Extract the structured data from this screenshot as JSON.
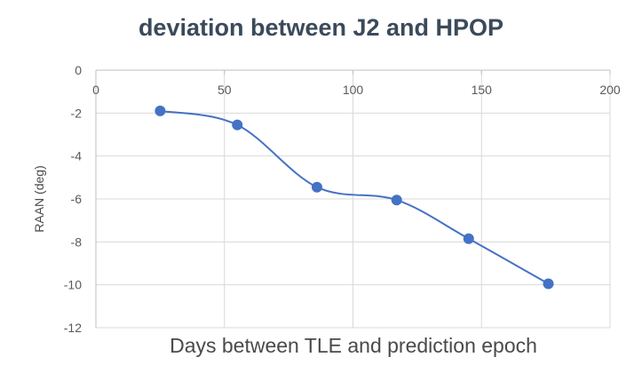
{
  "chart_data": {
    "type": "scatter",
    "title": "deviation between J2 and HPOP",
    "xlabel": "Days between TLE and prediction epoch",
    "ylabel": "RAAN (deg)",
    "xlim": [
      0,
      200
    ],
    "ylim": [
      -12,
      0
    ],
    "x_ticks": [
      0,
      50,
      100,
      150,
      200
    ],
    "y_ticks": [
      0,
      -2,
      -4,
      -6,
      -8,
      -10,
      -12
    ],
    "grid": true,
    "smoothed_line": true,
    "x_axis_position": "top",
    "series": [
      {
        "x": [
          25,
          55,
          86,
          117,
          145,
          176
        ],
        "y": [
          -1.9,
          -2.55,
          -5.45,
          -6.05,
          -7.85,
          -9.95
        ]
      }
    ],
    "colors": {
      "series": "#4472c4",
      "grid": "#d9d9d9",
      "axis": "#bfbfbf"
    }
  }
}
